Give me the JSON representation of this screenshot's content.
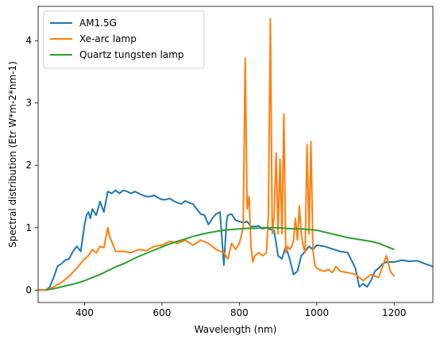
{
  "chart_data": {
    "type": "line",
    "title": "",
    "xlabel": "Wavelength (nm)",
    "ylabel": "Spectral distribution (Etr W*m-2*nm-1)",
    "xlim": [
      280,
      1300
    ],
    "ylim": [
      -0.2,
      4.55
    ],
    "xticks": [
      400,
      600,
      800,
      1000,
      1200
    ],
    "yticks": [
      0,
      1,
      2,
      3,
      4
    ],
    "grid": false,
    "legend_position": "top-left",
    "series": [
      {
        "name": "AM1.5G",
        "color": "#1f77b4",
        "x": [
          280,
          300,
          310,
          320,
          330,
          340,
          350,
          360,
          370,
          380,
          390,
          400,
          405,
          410,
          415,
          420,
          430,
          440,
          450,
          460,
          470,
          480,
          490,
          500,
          510,
          520,
          530,
          540,
          550,
          560,
          570,
          580,
          590,
          600,
          610,
          620,
          630,
          640,
          650,
          660,
          670,
          680,
          690,
          700,
          710,
          720,
          730,
          740,
          750,
          760,
          763,
          767,
          770,
          780,
          790,
          800,
          810,
          820,
          830,
          840,
          850,
          860,
          870,
          880,
          890,
          900,
          910,
          920,
          930,
          940,
          950,
          960,
          970,
          980,
          990,
          1000,
          1020,
          1040,
          1060,
          1080,
          1100,
          1110,
          1120,
          1130,
          1140,
          1150,
          1160,
          1170,
          1180,
          1200,
          1220,
          1240,
          1260,
          1280,
          1300
        ],
        "y": [
          0,
          0,
          0.05,
          0.2,
          0.38,
          0.42,
          0.48,
          0.5,
          0.62,
          0.7,
          0.62,
          1.05,
          1.2,
          1.25,
          1.15,
          1.3,
          1.2,
          1.42,
          1.25,
          1.58,
          1.55,
          1.6,
          1.55,
          1.6,
          1.58,
          1.55,
          1.58,
          1.55,
          1.52,
          1.5,
          1.5,
          1.52,
          1.48,
          1.45,
          1.45,
          1.47,
          1.43,
          1.4,
          1.38,
          1.43,
          1.4,
          1.38,
          1.3,
          1.22,
          1.2,
          1.05,
          1.15,
          1.22,
          1.25,
          0.4,
          0.7,
          1.1,
          1.2,
          1.22,
          1.12,
          1.1,
          1.08,
          1.1,
          1.02,
          1.02,
          1.03,
          0.98,
          1.0,
          0.97,
          0.95,
          0.55,
          0.5,
          0.7,
          0.5,
          0.25,
          0.3,
          0.55,
          0.62,
          0.7,
          0.65,
          0.72,
          0.7,
          0.66,
          0.62,
          0.6,
          0.35,
          0.05,
          0.1,
          0.05,
          0.15,
          0.3,
          0.35,
          0.42,
          0.45,
          0.45,
          0.48,
          0.46,
          0.47,
          0.42,
          0.38
        ]
      },
      {
        "name": "Xe-arc lamp",
        "color": "#ff7f0e",
        "x": [
          280,
          300,
          320,
          340,
          360,
          380,
          400,
          410,
          420,
          430,
          440,
          450,
          460,
          465,
          470,
          480,
          500,
          520,
          540,
          560,
          580,
          600,
          620,
          640,
          660,
          680,
          700,
          720,
          740,
          760,
          770,
          780,
          790,
          800,
          810,
          815,
          820,
          825,
          830,
          835,
          840,
          850,
          860,
          870,
          875,
          880,
          885,
          890,
          895,
          900,
          905,
          910,
          915,
          920,
          925,
          930,
          935,
          940,
          945,
          950,
          955,
          960,
          965,
          970,
          975,
          980,
          985,
          990,
          995,
          1000,
          1010,
          1020,
          1030,
          1040,
          1050,
          1060,
          1080,
          1100,
          1120,
          1140,
          1160,
          1180,
          1190,
          1200
        ],
        "y": [
          0,
          0,
          0.05,
          0.12,
          0.22,
          0.35,
          0.5,
          0.55,
          0.65,
          0.6,
          0.7,
          0.68,
          1.0,
          0.85,
          0.78,
          0.62,
          0.62,
          0.6,
          0.65,
          0.63,
          0.7,
          0.72,
          0.78,
          0.75,
          0.8,
          0.72,
          0.8,
          0.75,
          0.65,
          0.6,
          0.5,
          0.75,
          0.65,
          0.75,
          1.0,
          3.72,
          1.3,
          1.5,
          0.7,
          0.45,
          0.55,
          0.6,
          0.55,
          0.6,
          1.2,
          4.35,
          0.9,
          1.2,
          2.2,
          0.9,
          2.1,
          0.9,
          2.82,
          0.6,
          0.7,
          0.65,
          0.7,
          0.8,
          1.15,
          0.8,
          1.35,
          0.9,
          0.7,
          0.6,
          2.33,
          0.9,
          2.38,
          0.65,
          0.4,
          0.35,
          0.32,
          0.3,
          0.33,
          0.28,
          0.38,
          0.3,
          0.28,
          0.25,
          0.15,
          0.25,
          0.2,
          0.55,
          0.3,
          0.22
        ]
      },
      {
        "name": "Quartz tungsten lamp",
        "color": "#2ca02c",
        "x": [
          300,
          320,
          340,
          360,
          380,
          400,
          420,
          440,
          460,
          480,
          500,
          520,
          540,
          560,
          580,
          600,
          620,
          640,
          660,
          680,
          700,
          720,
          740,
          760,
          780,
          800,
          820,
          840,
          860,
          880,
          900,
          920,
          940,
          960,
          980,
          1000,
          1020,
          1040,
          1060,
          1080,
          1100,
          1120,
          1140,
          1160,
          1180,
          1200
        ],
        "y": [
          0.0,
          0.02,
          0.05,
          0.08,
          0.11,
          0.15,
          0.2,
          0.25,
          0.31,
          0.37,
          0.42,
          0.48,
          0.54,
          0.59,
          0.64,
          0.69,
          0.74,
          0.78,
          0.82,
          0.86,
          0.89,
          0.92,
          0.94,
          0.96,
          0.97,
          0.98,
          0.99,
          0.99,
          1.0,
          1.0,
          1.0,
          0.99,
          0.98,
          0.98,
          0.97,
          0.96,
          0.93,
          0.9,
          0.87,
          0.84,
          0.82,
          0.8,
          0.78,
          0.75,
          0.7,
          0.65
        ]
      }
    ]
  }
}
